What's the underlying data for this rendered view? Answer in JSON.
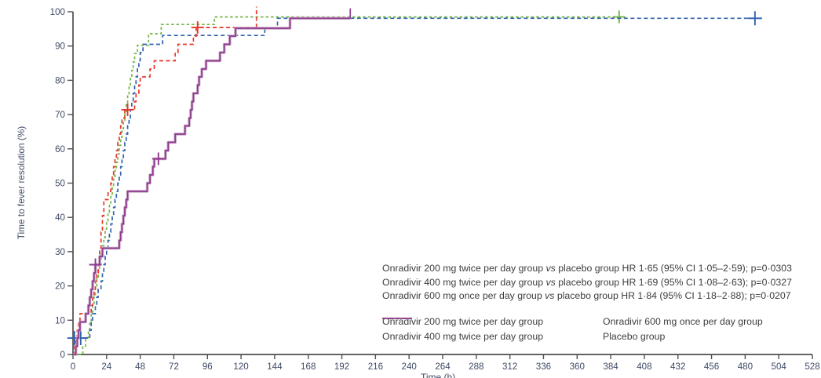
{
  "figure": {
    "y_axis_title": "Time to fever resolution (%)",
    "x_axis_title": "Time (h)"
  },
  "annotations": {
    "lines": [
      {
        "group": "Onradivir 200 mg twice per day group",
        "vs": "vs",
        "rest": "placebo group HR 1·65 (95% CI 1·05–2·59); p=0·0303"
      },
      {
        "group": "Onradivir 400 mg twice per day group",
        "vs": "vs",
        "rest": "placebo group HR 1·69 (95% CI 1·08–2·63); p=0·0327"
      },
      {
        "group": "Onradivir 600 mg once per day group",
        "vs": "vs",
        "rest": "placebo group HR 1·84 (95% CI 1·18–2·88); p=0·0207"
      }
    ]
  },
  "legend": {
    "items": [
      {
        "label": "Onradivir 200 mg twice per day group"
      },
      {
        "label": "Onradivir 400 mg twice per day group"
      },
      {
        "label": "Onradivir 600 mg once per day group"
      },
      {
        "label": "Placebo group"
      }
    ]
  },
  "chart_data": {
    "type": "line",
    "subtype": "kaplan-meier-step",
    "title": "",
    "xlabel": "Time (h)",
    "ylabel": "Time to fever resolution (%)",
    "x_axis": {
      "min": 0,
      "max": 528,
      "ticks": [
        0,
        24,
        48,
        72,
        96,
        120,
        144,
        168,
        192,
        216,
        240,
        264,
        288,
        312,
        336,
        360,
        384,
        408,
        432,
        456,
        480,
        504,
        528
      ]
    },
    "y_axis": {
      "min": 0,
      "max": 100,
      "ticks": [
        0,
        10,
        20,
        30,
        40,
        50,
        60,
        70,
        80,
        90,
        100
      ]
    },
    "grid": false,
    "legend_position": "bottom-right-inside",
    "comparisons": [
      {
        "group": "Onradivir 200 mg twice per day group",
        "reference": "placebo group",
        "HR": "1·65",
        "CI95": "1·05–2·59",
        "p": "0·0303"
      },
      {
        "group": "Onradivir 400 mg twice per day group",
        "reference": "placebo group",
        "HR": "1·69",
        "CI95": "1·08–2·63",
        "p": "0·0327"
      },
      {
        "group": "Onradivir 600 mg once per day group",
        "reference": "placebo group",
        "HR": "1·84",
        "CI95": "1·18–2·88",
        "p": "0·0207"
      }
    ],
    "series": [
      {
        "name": "Onradivir 200 mg twice per day group",
        "color": "#2f62ad",
        "dash": "5 3.5",
        "width": 1.7,
        "points": [
          [
            0,
            0
          ],
          [
            1,
            2.4
          ],
          [
            2,
            4.8
          ],
          [
            12,
            7.1
          ],
          [
            13,
            9.5
          ],
          [
            14,
            11.9
          ],
          [
            16,
            14.3
          ],
          [
            17,
            16.7
          ],
          [
            18,
            19
          ],
          [
            20,
            21.4
          ],
          [
            21,
            23.8
          ],
          [
            22,
            26.2
          ],
          [
            23,
            28.6
          ],
          [
            24,
            31
          ],
          [
            25,
            33.3
          ],
          [
            26,
            35.7
          ],
          [
            27,
            38.1
          ],
          [
            28,
            40.5
          ],
          [
            29,
            42.9
          ],
          [
            30,
            45.2
          ],
          [
            31,
            47.6
          ],
          [
            32,
            50
          ],
          [
            33,
            52.4
          ],
          [
            34,
            54.8
          ],
          [
            35,
            57.1
          ],
          [
            36,
            59.5
          ],
          [
            37,
            61.9
          ],
          [
            38,
            64.3
          ],
          [
            39,
            66.7
          ],
          [
            40,
            69
          ],
          [
            41,
            71.4
          ],
          [
            42,
            73.8
          ],
          [
            43,
            76.2
          ],
          [
            44,
            78.6
          ],
          [
            45,
            81
          ],
          [
            46,
            83.3
          ],
          [
            47,
            85.7
          ],
          [
            48,
            88.1
          ],
          [
            50,
            90.5
          ],
          [
            64,
            93.1
          ],
          [
            137,
            95.2
          ],
          [
            146,
            98.1
          ],
          [
            492,
            98.1
          ]
        ],
        "censor_marks": [
          [
            1,
            4.8,
            9
          ],
          [
            5.5,
            4.8,
            9
          ],
          [
            487,
            98.1,
            9
          ]
        ]
      },
      {
        "name": "Onradivir 400 mg twice per day group",
        "color": "#e6372b",
        "dash": "5 3.5",
        "width": 1.7,
        "points": [
          [
            0,
            0
          ],
          [
            1,
            2.4
          ],
          [
            2,
            4.8
          ],
          [
            3,
            7.1
          ],
          [
            4,
            9.5
          ],
          [
            5,
            11.9
          ],
          [
            13,
            14.3
          ],
          [
            14,
            16.7
          ],
          [
            15,
            19
          ],
          [
            16,
            21.4
          ],
          [
            17,
            23.8
          ],
          [
            18,
            26.2
          ],
          [
            19,
            31
          ],
          [
            20,
            35.7
          ],
          [
            21,
            40.5
          ],
          [
            22,
            45.2
          ],
          [
            25,
            47.6
          ],
          [
            27,
            50
          ],
          [
            28,
            52.4
          ],
          [
            29,
            54.8
          ],
          [
            30,
            57.1
          ],
          [
            31,
            59.5
          ],
          [
            32,
            61.9
          ],
          [
            33,
            64.3
          ],
          [
            34,
            66.7
          ],
          [
            35,
            69
          ],
          [
            37,
            71.4
          ],
          [
            44,
            73.8
          ],
          [
            45,
            76.2
          ],
          [
            47,
            78.6
          ],
          [
            48,
            81
          ],
          [
            55,
            83.3
          ],
          [
            58,
            85.7
          ],
          [
            73,
            88.1
          ],
          [
            75,
            90.5
          ],
          [
            86,
            92.9
          ],
          [
            88,
            95.4
          ],
          [
            131,
            95.4
          ]
        ],
        "end_tick": {
          "t": 131,
          "from": 95.4,
          "to": 101.5
        },
        "censor_marks": [
          [
            39,
            71.4,
            8
          ],
          [
            89,
            95.4,
            8
          ]
        ]
      },
      {
        "name": "Onradivir 600 mg once per day group",
        "color": "#74b544",
        "dash": "3.5 3",
        "width": 1.7,
        "points": [
          [
            0,
            0
          ],
          [
            7,
            2.4
          ],
          [
            9,
            4.9
          ],
          [
            11,
            7.3
          ],
          [
            12,
            9.8
          ],
          [
            13,
            12.2
          ],
          [
            14,
            14.6
          ],
          [
            15,
            17.1
          ],
          [
            16,
            19.5
          ],
          [
            17,
            22
          ],
          [
            18,
            24.4
          ],
          [
            19,
            26.8
          ],
          [
            20,
            29.3
          ],
          [
            21,
            31.7
          ],
          [
            22,
            34.1
          ],
          [
            23,
            36.6
          ],
          [
            24,
            39
          ],
          [
            25,
            41.5
          ],
          [
            26,
            43.9
          ],
          [
            27,
            46.3
          ],
          [
            28,
            48.8
          ],
          [
            29,
            51.2
          ],
          [
            30,
            53.7
          ],
          [
            31,
            56.1
          ],
          [
            32,
            58.5
          ],
          [
            33,
            61
          ],
          [
            34,
            63.4
          ],
          [
            35,
            65.9
          ],
          [
            36,
            68.3
          ],
          [
            37,
            70.7
          ],
          [
            38,
            73.2
          ],
          [
            39,
            75.6
          ],
          [
            40,
            78
          ],
          [
            41,
            80.5
          ],
          [
            42,
            82.9
          ],
          [
            43,
            85.4
          ],
          [
            44,
            87.8
          ],
          [
            46,
            90.2
          ],
          [
            54,
            93.6
          ],
          [
            63,
            96.3
          ],
          [
            101,
            98.5
          ],
          [
            390,
            98.5
          ]
        ],
        "censor_marks": [
          [
            390,
            98.5,
            8
          ]
        ]
      },
      {
        "name": "Placebo group",
        "color": "#8e3a8e",
        "underlay_color": "#c8a8c6",
        "dash": "",
        "width": 1.7,
        "points": [
          [
            0,
            0
          ],
          [
            2,
            2.4
          ],
          [
            3,
            4.8
          ],
          [
            4,
            7.1
          ],
          [
            5,
            9.5
          ],
          [
            9,
            11.9
          ],
          [
            11,
            14.3
          ],
          [
            12,
            16.7
          ],
          [
            13,
            19
          ],
          [
            14,
            21.4
          ],
          [
            15,
            23.8
          ],
          [
            16,
            26.2
          ],
          [
            19,
            28.6
          ],
          [
            21,
            31
          ],
          [
            33,
            33.3
          ],
          [
            34,
            35.7
          ],
          [
            35,
            38.1
          ],
          [
            36,
            40.5
          ],
          [
            37,
            42.9
          ],
          [
            38,
            45.2
          ],
          [
            39,
            47.6
          ],
          [
            53,
            50
          ],
          [
            55,
            52.4
          ],
          [
            57,
            54.8
          ],
          [
            58,
            57.1
          ],
          [
            66,
            59.5
          ],
          [
            68,
            61.9
          ],
          [
            73,
            64.3
          ],
          [
            80,
            66.7
          ],
          [
            83,
            69
          ],
          [
            84,
            71.4
          ],
          [
            85,
            73.8
          ],
          [
            86,
            76.2
          ],
          [
            89,
            78.6
          ],
          [
            90,
            81
          ],
          [
            92,
            83.3
          ],
          [
            95,
            85.7
          ],
          [
            105,
            88.1
          ],
          [
            108,
            90.5
          ],
          [
            112,
            92.9
          ],
          [
            116,
            95.2
          ],
          [
            155,
            98.1
          ],
          [
            198,
            98.1
          ]
        ],
        "end_tick": {
          "t": 198,
          "from": 98.1,
          "to": 101
        },
        "censor_marks": [
          [
            16,
            26.2,
            8
          ],
          [
            61,
            57.1,
            8
          ]
        ]
      }
    ],
    "axis_color": "#4f4f4f",
    "axis_text_color": "#3f4b66",
    "draw_order": [
      2,
      0,
      1,
      3
    ]
  }
}
